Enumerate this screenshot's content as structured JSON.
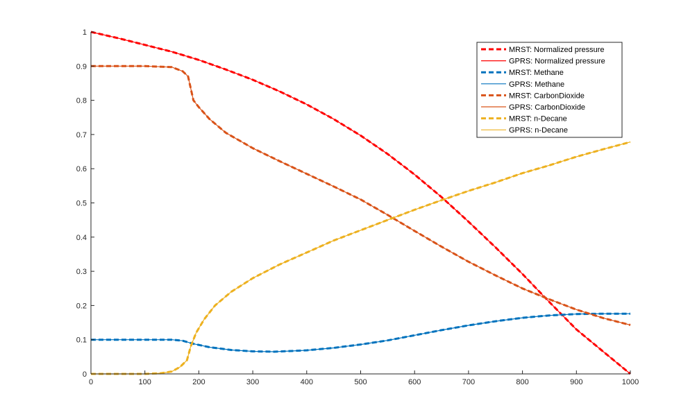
{
  "chart_data": {
    "type": "line",
    "title": "",
    "xlabel": "",
    "ylabel": "",
    "xlim": [
      0,
      1000
    ],
    "ylim": [
      0,
      1
    ],
    "xticks": [
      0,
      100,
      200,
      300,
      400,
      500,
      600,
      700,
      800,
      900,
      1000
    ],
    "yticks": [
      0,
      0.1,
      0.2,
      0.3,
      0.4,
      0.5,
      0.6,
      0.7,
      0.8,
      0.9,
      1
    ],
    "xtick_labels": [
      "0",
      "100",
      "200",
      "300",
      "400",
      "500",
      "600",
      "700",
      "800",
      "900",
      "1000"
    ],
    "ytick_labels": [
      "0",
      "0.1",
      "0.2",
      "0.3",
      "0.4",
      "0.5",
      "0.6",
      "0.7",
      "0.8",
      "0.9",
      "1"
    ],
    "grid": false,
    "legend_position": "top-right",
    "series": [
      {
        "name": "MRST: Normalized pressure",
        "color": "#ff0000",
        "dash": true,
        "x": [
          0,
          50,
          100,
          150,
          200,
          250,
          300,
          350,
          400,
          450,
          500,
          550,
          600,
          650,
          700,
          750,
          800,
          850,
          900,
          950,
          1000
        ],
        "y": [
          1.0,
          0.982,
          0.962,
          0.942,
          0.918,
          0.89,
          0.86,
          0.826,
          0.788,
          0.745,
          0.697,
          0.643,
          0.583,
          0.517,
          0.445,
          0.37,
          0.292,
          0.21,
          0.13,
          0.065,
          0.0
        ]
      },
      {
        "name": "GPRS: Normalized pressure",
        "color": "#ff0000",
        "dash": false,
        "x": [
          0,
          50,
          100,
          150,
          200,
          250,
          300,
          350,
          400,
          450,
          500,
          550,
          600,
          650,
          700,
          750,
          800,
          850,
          900,
          950,
          1000
        ],
        "y": [
          1.0,
          0.982,
          0.962,
          0.942,
          0.918,
          0.89,
          0.86,
          0.826,
          0.788,
          0.745,
          0.697,
          0.643,
          0.583,
          0.517,
          0.445,
          0.37,
          0.292,
          0.21,
          0.13,
          0.065,
          0.0
        ]
      },
      {
        "name": "MRST: Methane",
        "color": "#0072bd",
        "dash": true,
        "x": [
          0,
          50,
          100,
          150,
          170,
          190,
          220,
          260,
          300,
          340,
          400,
          450,
          500,
          550,
          600,
          650,
          700,
          750,
          800,
          850,
          900,
          950,
          1000
        ],
        "y": [
          0.1,
          0.1,
          0.1,
          0.1,
          0.097,
          0.088,
          0.078,
          0.07,
          0.066,
          0.065,
          0.069,
          0.076,
          0.086,
          0.098,
          0.113,
          0.128,
          0.142,
          0.154,
          0.164,
          0.171,
          0.175,
          0.176,
          0.176
        ]
      },
      {
        "name": "GPRS: Methane",
        "color": "#0072bd",
        "dash": false,
        "x": [
          0,
          50,
          100,
          150,
          170,
          190,
          220,
          260,
          300,
          340,
          400,
          450,
          500,
          550,
          600,
          650,
          700,
          750,
          800,
          850,
          900,
          950,
          1000
        ],
        "y": [
          0.1,
          0.1,
          0.1,
          0.1,
          0.097,
          0.088,
          0.078,
          0.07,
          0.066,
          0.065,
          0.069,
          0.076,
          0.086,
          0.098,
          0.113,
          0.128,
          0.142,
          0.154,
          0.164,
          0.171,
          0.175,
          0.176,
          0.176
        ]
      },
      {
        "name": "MRST: CarbonDioxide",
        "color": "#d95319",
        "dash": true,
        "x": [
          0,
          50,
          100,
          150,
          170,
          180,
          190,
          200,
          220,
          250,
          300,
          350,
          400,
          450,
          500,
          550,
          600,
          650,
          700,
          750,
          800,
          850,
          900,
          950,
          1000
        ],
        "y": [
          0.9,
          0.9,
          0.9,
          0.897,
          0.885,
          0.87,
          0.8,
          0.78,
          0.745,
          0.705,
          0.66,
          0.622,
          0.585,
          0.548,
          0.51,
          0.465,
          0.418,
          0.372,
          0.328,
          0.288,
          0.25,
          0.218,
          0.188,
          0.163,
          0.143
        ]
      },
      {
        "name": "GPRS: CarbonDioxide",
        "color": "#d95319",
        "dash": false,
        "x": [
          0,
          50,
          100,
          150,
          170,
          180,
          190,
          200,
          220,
          250,
          300,
          350,
          400,
          450,
          500,
          550,
          600,
          650,
          700,
          750,
          800,
          850,
          900,
          950,
          1000
        ],
        "y": [
          0.9,
          0.9,
          0.9,
          0.897,
          0.885,
          0.87,
          0.8,
          0.78,
          0.745,
          0.705,
          0.66,
          0.622,
          0.585,
          0.548,
          0.51,
          0.465,
          0.418,
          0.372,
          0.328,
          0.288,
          0.25,
          0.218,
          0.188,
          0.163,
          0.143
        ]
      },
      {
        "name": "MRST: n-Decane",
        "color": "#edb120",
        "dash": true,
        "x": [
          0,
          50,
          100,
          130,
          150,
          165,
          178,
          185,
          195,
          210,
          230,
          260,
          300,
          350,
          400,
          450,
          500,
          550,
          600,
          650,
          700,
          750,
          800,
          850,
          900,
          950,
          1000
        ],
        "y": [
          0.0,
          0.0,
          0.0,
          0.002,
          0.007,
          0.02,
          0.04,
          0.08,
          0.12,
          0.16,
          0.2,
          0.24,
          0.28,
          0.32,
          0.355,
          0.39,
          0.42,
          0.45,
          0.48,
          0.508,
          0.535,
          0.56,
          0.587,
          0.61,
          0.635,
          0.657,
          0.678
        ]
      },
      {
        "name": "GPRS: n-Decane",
        "color": "#edb120",
        "dash": false,
        "x": [
          0,
          50,
          100,
          130,
          150,
          165,
          178,
          185,
          195,
          210,
          230,
          260,
          300,
          350,
          400,
          450,
          500,
          550,
          600,
          650,
          700,
          750,
          800,
          850,
          900,
          950,
          1000
        ],
        "y": [
          0.0,
          0.0,
          0.0,
          0.002,
          0.007,
          0.02,
          0.04,
          0.08,
          0.12,
          0.16,
          0.2,
          0.24,
          0.28,
          0.32,
          0.355,
          0.39,
          0.42,
          0.45,
          0.48,
          0.508,
          0.535,
          0.56,
          0.587,
          0.61,
          0.635,
          0.657,
          0.678
        ]
      }
    ]
  }
}
